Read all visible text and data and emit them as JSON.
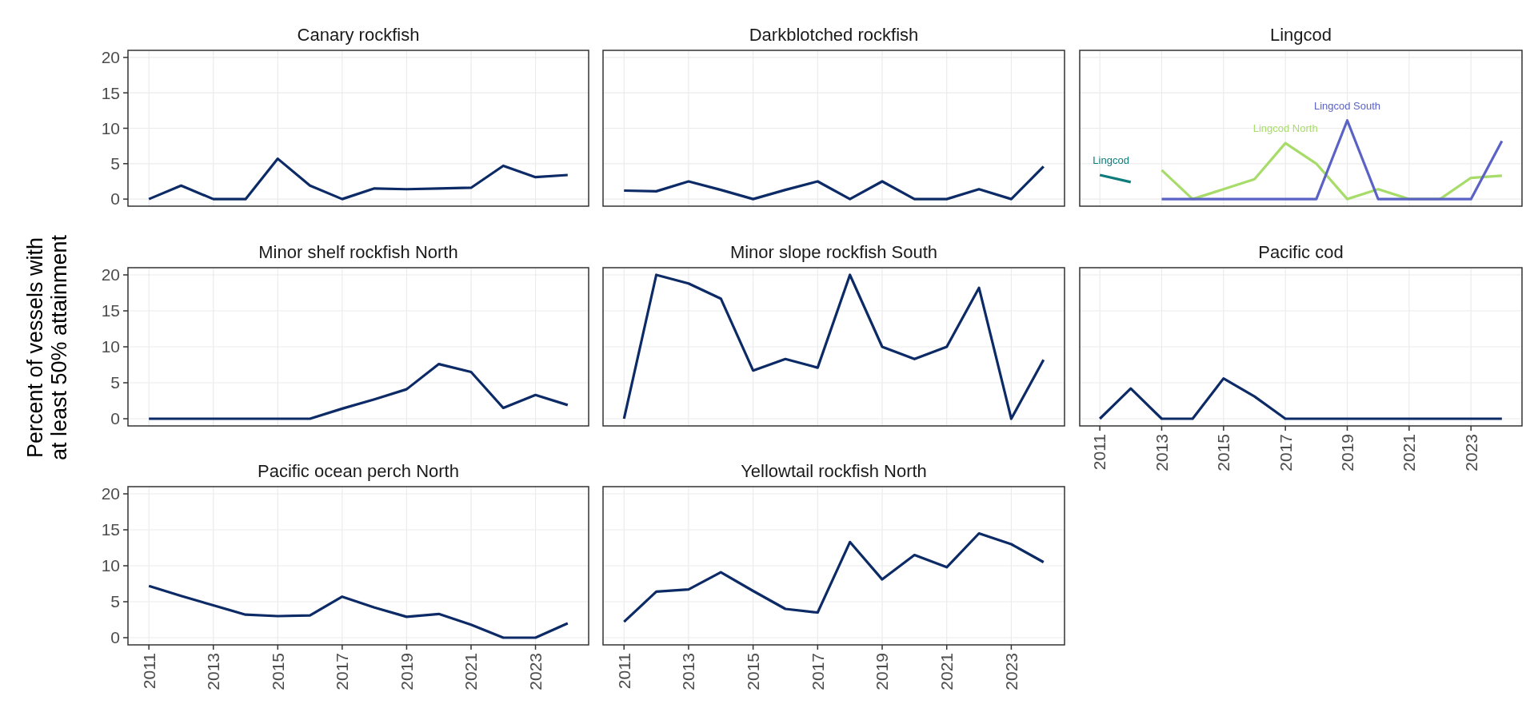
{
  "chart_data": [
    {
      "type": "line",
      "title": "Canary rockfish",
      "ylabel": "Percent of vessels with\nat least 50% attainment",
      "x": [
        2011,
        2012,
        2013,
        2014,
        2015,
        2016,
        2017,
        2018,
        2019,
        2020,
        2021,
        2022,
        2023,
        2024
      ],
      "xlim": [
        2010.35,
        2024.65
      ],
      "ylim": [
        -1,
        21
      ],
      "xticks": [
        2011,
        2013,
        2015,
        2017,
        2019,
        2021,
        2023
      ],
      "yticks": [
        0,
        5,
        10,
        15,
        20
      ],
      "grid": true,
      "tick_labels": "y",
      "series": [
        {
          "color": "#0b2a66",
          "values": [
            0,
            1.9,
            0,
            0,
            5.7,
            1.9,
            0,
            1.5,
            1.4,
            1.5,
            1.6,
            4.7,
            3.1,
            3.4
          ]
        }
      ]
    },
    {
      "type": "line",
      "title": "Darkblotched rockfish",
      "x": [
        2011,
        2012,
        2013,
        2014,
        2015,
        2016,
        2017,
        2018,
        2019,
        2020,
        2021,
        2022,
        2023,
        2024
      ],
      "xlim": [
        2010.35,
        2024.65
      ],
      "ylim": [
        -1,
        21
      ],
      "xticks": [
        2011,
        2013,
        2015,
        2017,
        2019,
        2021,
        2023
      ],
      "yticks": [
        0,
        5,
        10,
        15,
        20
      ],
      "grid": true,
      "tick_labels": false,
      "series": [
        {
          "color": "#0b2a66",
          "values": [
            1.2,
            1.1,
            2.5,
            1.3,
            0,
            1.3,
            2.5,
            0,
            2.5,
            0,
            0,
            1.4,
            0,
            4.6
          ]
        }
      ]
    },
    {
      "type": "line",
      "title": "Lingcod",
      "xlim": [
        2010.35,
        2024.65
      ],
      "ylim": [
        -1,
        21
      ],
      "xticks": [
        2011,
        2013,
        2015,
        2017,
        2019,
        2021,
        2023
      ],
      "yticks": [
        0,
        5,
        10,
        15,
        20
      ],
      "grid": true,
      "tick_labels": false,
      "series": [
        {
          "name": "Lingcod",
          "color": "#0e7c7b",
          "x": [
            2011,
            2012
          ],
          "values": [
            3.4,
            2.4
          ]
        },
        {
          "name": "Lingcod North",
          "color": "#a8dc6a",
          "x": [
            2013,
            2014,
            2015,
            2016,
            2017,
            2018,
            2019,
            2020,
            2021,
            2022,
            2023,
            2024
          ],
          "values": [
            4.1,
            0,
            1.4,
            2.8,
            7.9,
            5.0,
            0,
            1.4,
            0,
            0,
            3.0,
            3.3
          ]
        },
        {
          "name": "Lingcod South",
          "color": "#5b62c6",
          "x": [
            2013,
            2014,
            2015,
            2016,
            2017,
            2018,
            2019,
            2020,
            2021,
            2022,
            2023,
            2024
          ],
          "values": [
            0,
            0,
            0,
            0,
            0,
            0,
            11.1,
            0,
            0,
            0,
            0,
            8.2
          ]
        }
      ]
    },
    {
      "type": "line",
      "title": "Minor shelf rockfish North",
      "x": [
        2011,
        2012,
        2013,
        2014,
        2015,
        2016,
        2017,
        2018,
        2019,
        2020,
        2021,
        2022,
        2023,
        2024
      ],
      "xlim": [
        2010.35,
        2024.65
      ],
      "ylim": [
        -1,
        21
      ],
      "xticks": [
        2011,
        2013,
        2015,
        2017,
        2019,
        2021,
        2023
      ],
      "yticks": [
        0,
        5,
        10,
        15,
        20
      ],
      "grid": true,
      "tick_labels": "y",
      "series": [
        {
          "color": "#0b2a66",
          "values": [
            0,
            0,
            0,
            0,
            0,
            0,
            1.4,
            2.7,
            4.1,
            7.6,
            6.5,
            1.5,
            3.3,
            1.9
          ]
        }
      ]
    },
    {
      "type": "line",
      "title": "Minor slope rockfish South",
      "x": [
        2011,
        2012,
        2013,
        2014,
        2015,
        2016,
        2017,
        2018,
        2019,
        2020,
        2021,
        2022,
        2023,
        2024
      ],
      "xlim": [
        2010.35,
        2024.65
      ],
      "ylim": [
        -1,
        21
      ],
      "xticks": [
        2011,
        2013,
        2015,
        2017,
        2019,
        2021,
        2023
      ],
      "yticks": [
        0,
        5,
        10,
        15,
        20
      ],
      "grid": true,
      "tick_labels": false,
      "series": [
        {
          "color": "#0b2a66",
          "values": [
            0,
            20,
            18.8,
            16.7,
            6.7,
            8.3,
            7.1,
            20,
            10,
            8.3,
            10,
            18.2,
            0,
            8.2
          ]
        }
      ]
    },
    {
      "type": "line",
      "title": "Pacific cod",
      "x": [
        2011,
        2012,
        2013,
        2014,
        2015,
        2016,
        2017,
        2018,
        2019,
        2020,
        2021,
        2022,
        2023,
        2024
      ],
      "xlim": [
        2010.35,
        2024.65
      ],
      "ylim": [
        -1,
        21
      ],
      "xticks": [
        2011,
        2013,
        2015,
        2017,
        2019,
        2021,
        2023
      ],
      "yticks": [
        0,
        5,
        10,
        15,
        20
      ],
      "grid": true,
      "tick_labels": "x",
      "series": [
        {
          "color": "#0b2a66",
          "values": [
            0,
            4.2,
            0,
            0,
            5.6,
            3.1,
            0,
            0,
            0,
            0,
            0,
            0,
            0,
            0
          ]
        }
      ]
    },
    {
      "type": "line",
      "title": "Pacific ocean perch North",
      "x": [
        2011,
        2012,
        2013,
        2014,
        2015,
        2016,
        2017,
        2018,
        2019,
        2020,
        2021,
        2022,
        2023,
        2024
      ],
      "xlim": [
        2010.35,
        2024.65
      ],
      "ylim": [
        -1,
        21
      ],
      "xticks": [
        2011,
        2013,
        2015,
        2017,
        2019,
        2021,
        2023
      ],
      "yticks": [
        0,
        5,
        10,
        15,
        20
      ],
      "grid": true,
      "series": [
        {
          "color": "#0b2a66",
          "values": [
            7.2,
            5.8,
            4.5,
            3.2,
            3.0,
            3.1,
            5.7,
            4.2,
            2.9,
            3.3,
            1.8,
            0,
            0,
            2.0
          ]
        }
      ]
    },
    {
      "type": "line",
      "title": "Yellowtail rockfish North",
      "x": [
        2011,
        2012,
        2013,
        2014,
        2015,
        2016,
        2017,
        2018,
        2019,
        2020,
        2021,
        2022,
        2023,
        2024
      ],
      "xlim": [
        2010.35,
        2024.65
      ],
      "ylim": [
        -1,
        21
      ],
      "xticks": [
        2011,
        2013,
        2015,
        2017,
        2019,
        2021,
        2023
      ],
      "yticks": [
        0,
        5,
        10,
        15,
        20
      ],
      "grid": true,
      "tick_labels": "x",
      "series": [
        {
          "color": "#0b2a66",
          "values": [
            2.2,
            6.4,
            6.7,
            9.1,
            6.5,
            4.0,
            3.5,
            13.3,
            8.1,
            11.5,
            9.8,
            14.5,
            13.0,
            10.5
          ]
        }
      ]
    }
  ]
}
